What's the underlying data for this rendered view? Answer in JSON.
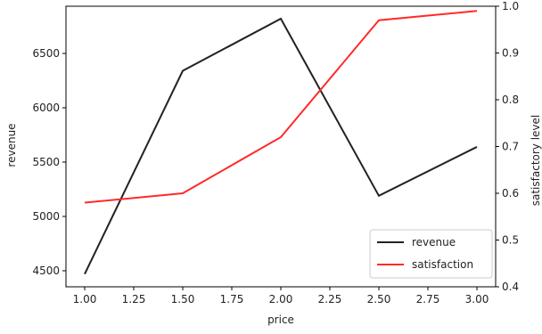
{
  "chart_data": {
    "type": "line",
    "x": [
      1.0,
      1.5,
      2.0,
      2.5,
      3.0
    ],
    "xlabel": "price",
    "xlim": [
      0.95,
      3.05
    ],
    "xticks": [
      "1.00",
      "1.25",
      "1.50",
      "1.75",
      "2.00",
      "2.25",
      "2.50",
      "2.75",
      "3.00"
    ],
    "ylabel": "revenue",
    "ylim": [
      4350,
      6870
    ],
    "yticks": [
      "4500",
      "5000",
      "5500",
      "6000",
      "6500"
    ],
    "y2label": "satisfactory level",
    "y2lim": [
      0.4,
      1.0
    ],
    "y2ticks": [
      "0.4",
      "0.5",
      "0.6",
      "0.7",
      "0.8",
      "0.9",
      "1.0"
    ],
    "series": [
      {
        "name": "revenue",
        "axis": "left",
        "color": "#222222",
        "values": [
          4470,
          6340,
          6820,
          5190,
          5640
        ]
      },
      {
        "name": "satisfaction",
        "axis": "right",
        "color": "#ff2a2a",
        "values": [
          0.58,
          0.6,
          0.72,
          0.97,
          0.99
        ]
      }
    ],
    "legend": {
      "placement": "lower-right"
    },
    "grid": false
  }
}
